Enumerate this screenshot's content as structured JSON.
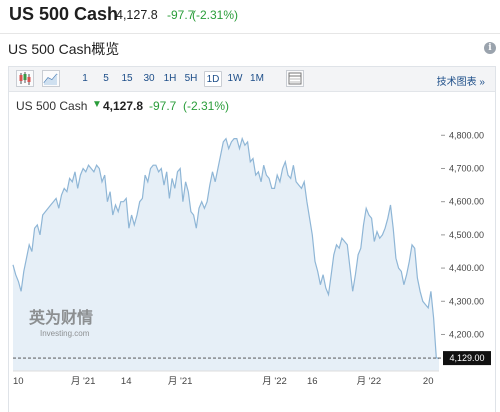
{
  "header": {
    "title": "US 500 Cash",
    "price": "4,127.8",
    "change": "-97.7",
    "change_pct": "(-2.31%)"
  },
  "section": {
    "title": "US 500 Cash概览"
  },
  "toolbar": {
    "icons": [
      "candlestick-icon",
      "area-chart-icon",
      "table-icon"
    ],
    "intervals": [
      "1",
      "5",
      "15",
      "30",
      "1H",
      "5H",
      "1D",
      "1W",
      "1M"
    ],
    "active_interval": "1D",
    "right_link": "技术图表 »"
  },
  "quote": {
    "name": "US 500 Cash",
    "price": "4,127.8",
    "change": "-97.7",
    "change_pct": "(-2.31%)"
  },
  "watermark": {
    "cn": "英为财情",
    "en": "Investing.com"
  },
  "current_price_label": "4,129.00",
  "colors": {
    "positive": "#2a9d3a",
    "link": "#1d4e89",
    "line": "#8fb6d6",
    "fill": "#e6eff7"
  },
  "chart_data": {
    "type": "area",
    "ylim": [
      4090,
      4840
    ],
    "yticks": [
      "4,800.00",
      "4,700.00",
      "4,600.00",
      "4,500.00",
      "4,400.00",
      "4,300.00",
      "4,200.00"
    ],
    "ytick_values": [
      4800,
      4700,
      4600,
      4500,
      4400,
      4300,
      4200
    ],
    "xticks": [
      "10",
      "月 '21",
      "14",
      "月 '21",
      "月 '22",
      "16",
      "月 '22",
      "20"
    ],
    "xtick_positions": [
      0,
      26,
      42,
      62,
      97,
      111,
      132,
      154
    ],
    "current_value": 4129,
    "x": [
      0,
      1,
      2,
      3,
      4,
      5,
      6,
      7,
      8,
      9,
      10,
      11,
      12,
      13,
      14,
      15,
      16,
      17,
      18,
      19,
      20,
      21,
      22,
      23,
      24,
      25,
      26,
      27,
      28,
      29,
      30,
      31,
      32,
      33,
      34,
      35,
      36,
      37,
      38,
      39,
      40,
      41,
      42,
      43,
      44,
      45,
      46,
      47,
      48,
      49,
      50,
      51,
      52,
      53,
      54,
      55,
      56,
      57,
      58,
      59,
      60,
      61,
      62,
      63,
      64,
      65,
      66,
      67,
      68,
      69,
      70,
      71,
      72,
      73,
      74,
      75,
      76,
      77,
      78,
      79,
      80,
      81,
      82,
      83,
      84,
      85,
      86,
      87,
      88,
      89,
      90,
      91,
      92,
      93,
      94,
      95,
      96,
      97,
      98,
      99,
      100,
      101,
      102,
      103,
      104,
      105,
      106,
      107,
      108,
      109,
      110,
      111,
      112,
      113,
      114,
      115,
      116,
      117,
      118,
      119,
      120,
      121,
      122,
      123,
      124,
      125,
      126,
      127,
      128,
      129,
      130,
      131,
      132,
      133,
      134,
      135,
      136,
      137,
      138,
      139,
      140,
      141,
      142,
      143,
      144,
      145,
      146,
      147,
      148,
      149,
      150,
      151,
      152,
      153,
      154,
      155,
      156,
      157,
      158
    ],
    "values": [
      4410,
      4380,
      4360,
      4330,
      4390,
      4430,
      4470,
      4450,
      4520,
      4530,
      4500,
      4560,
      4570,
      4580,
      4590,
      4600,
      4610,
      4580,
      4620,
      4640,
      4630,
      4670,
      4660,
      4690,
      4640,
      4680,
      4700,
      4690,
      4710,
      4700,
      4690,
      4710,
      4700,
      4660,
      4680,
      4600,
      4630,
      4560,
      4590,
      4570,
      4600,
      4600,
      4610,
      4520,
      4560,
      4530,
      4560,
      4600,
      4610,
      4680,
      4660,
      4700,
      4710,
      4710,
      4690,
      4700,
      4650,
      4690,
      4610,
      4670,
      4640,
      4690,
      4700,
      4600,
      4660,
      4630,
      4570,
      4560,
      4520,
      4580,
      4600,
      4580,
      4600,
      4650,
      4690,
      4660,
      4700,
      4740,
      4780,
      4790,
      4760,
      4780,
      4790,
      4790,
      4760,
      4790,
      4770,
      4780,
      4720,
      4730,
      4680,
      4690,
      4660,
      4710,
      4680,
      4670,
      4640,
      4640,
      4680,
      4660,
      4700,
      4720,
      4680,
      4670,
      4710,
      4660,
      4650,
      4640,
      4660,
      4600,
      4550,
      4500,
      4420,
      4390,
      4350,
      4380,
      4340,
      4320,
      4380,
      4440,
      4470,
      4460,
      4490,
      4480,
      4470,
      4400,
      4330,
      4380,
      4440,
      4460,
      4530,
      4580,
      4560,
      4550,
      4480,
      4510,
      4490,
      4500,
      4520,
      4550,
      4590,
      4520,
      4430,
      4400,
      4390,
      4350,
      4380,
      4420,
      4470,
      4460,
      4370,
      4330,
      4300,
      4290,
      4280,
      4330,
      4250,
      4130,
      4127.8
    ]
  }
}
